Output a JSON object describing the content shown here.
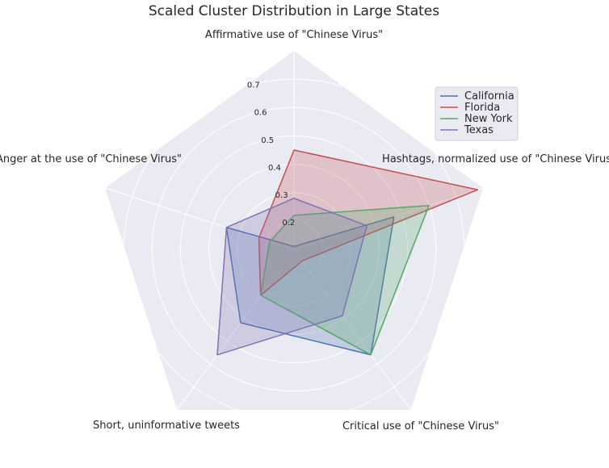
{
  "chart_data": {
    "type": "radar",
    "title": "Scaled Cluster Distribution in Large States",
    "axes": [
      "Affirmative use of \"Chinese Virus\"",
      "Hashtags, normalized use of \"Chinese Virus\"",
      "Critical use of \"Chinese Virus\"",
      "Short, uninformative tweets",
      "Anger at the use of \"Chinese Virus\""
    ],
    "rticks": [
      0.2,
      0.3,
      0.4,
      0.5,
      0.6,
      0.7
    ],
    "rtick_labels": [
      "0.2",
      "0.3",
      "0.4",
      "0.5",
      "0.6",
      "0.7"
    ],
    "rlim": [
      0.1,
      0.8
    ],
    "grid": true,
    "legend_position": "top-right",
    "series": [
      {
        "name": "California",
        "color": "#4c72b0",
        "values": [
          0.11,
          0.47,
          0.56,
          0.42,
          0.35
        ]
      },
      {
        "name": "Florida",
        "color": "#c44e52",
        "values": [
          0.45,
          0.78,
          0.15,
          0.3,
          0.23
        ]
      },
      {
        "name": "New York",
        "color": "#55a868",
        "values": [
          0.22,
          0.6,
          0.56,
          0.3,
          0.19
        ]
      },
      {
        "name": "Texas",
        "color": "#8172b2",
        "values": [
          0.28,
          0.37,
          0.39,
          0.56,
          0.35
        ]
      }
    ]
  }
}
